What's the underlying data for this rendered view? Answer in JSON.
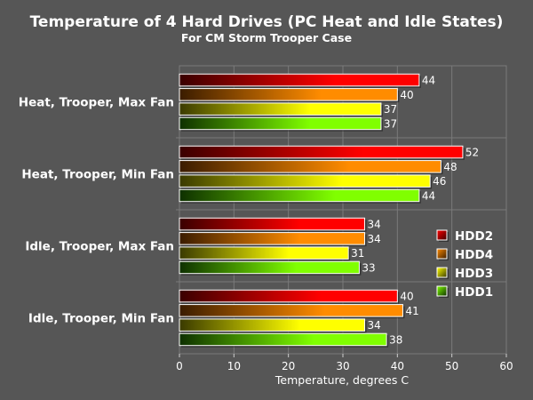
{
  "chart_data": {
    "type": "bar",
    "orientation": "horizontal",
    "title": "Temperature of 4 Hard Drives (PC Heat and Idle States)",
    "subtitle": "For CM Storm Trooper Case",
    "xlabel": "Temperature, degrees C",
    "ylabel": "",
    "xlim": [
      0,
      60
    ],
    "xticks": [
      0,
      10,
      20,
      30,
      40,
      50,
      60
    ],
    "grid": true,
    "legend_position": "right",
    "categories": [
      "Heat, Trooper, Max Fan",
      "Heat, Trooper, Min Fan",
      "Idle, Trooper, Max Fan",
      "Idle, Trooper, Min Fan"
    ],
    "series": [
      {
        "name": "HDD2",
        "color": "#ff0000",
        "dark": "#3a0000",
        "values": [
          44,
          52,
          34,
          40
        ]
      },
      {
        "name": "HDD4",
        "color": "#ff8c00",
        "dark": "#3a1c00",
        "values": [
          40,
          48,
          34,
          41
        ]
      },
      {
        "name": "HDD3",
        "color": "#ffff00",
        "dark": "#3a3a00",
        "values": [
          37,
          46,
          31,
          34
        ]
      },
      {
        "name": "HDD1",
        "color": "#80ff00",
        "dark": "#0e3000",
        "values": [
          37,
          44,
          33,
          38
        ]
      }
    ]
  }
}
